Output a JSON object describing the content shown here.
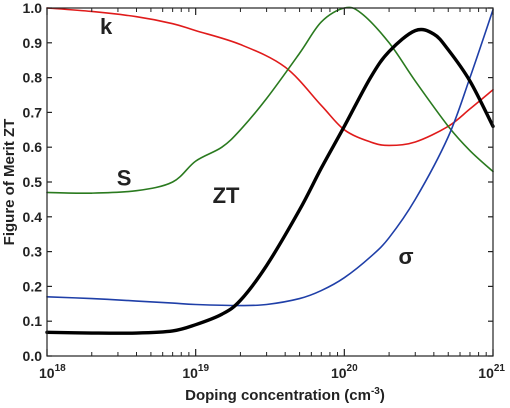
{
  "chart_data": {
    "type": "line",
    "title": "",
    "xlabel": "Doping concentration (cm",
    "xlabel_sup": "-3",
    "xlabel_close": ")",
    "ylabel": "Figure of Merit ZT",
    "xscale": "log",
    "xlim": [
      1e+18,
      1e+21
    ],
    "ylim": [
      0,
      1
    ],
    "grid": false,
    "x_ticks": [
      {
        "base": "10",
        "exp": "18",
        "value": 1e+18
      },
      {
        "base": "10",
        "exp": "19",
        "value": 1e+19
      },
      {
        "base": "10",
        "exp": "20",
        "value": 1e+20
      },
      {
        "base": "10",
        "exp": "21",
        "value": 1e+21
      }
    ],
    "y_ticks": [
      "0.0",
      "0.1",
      "0.2",
      "0.3",
      "0.4",
      "0.5",
      "0.6",
      "0.7",
      "0.8",
      "0.9",
      "1.0"
    ],
    "series": [
      {
        "name": "k",
        "color": "#e01b1b",
        "x": [
          1e+18,
          2e+18,
          4e+18,
          7e+18,
          1e+19,
          2e+19,
          4e+19,
          7e+19,
          1e+20,
          1.5e+20,
          2e+20,
          3e+20,
          5e+20,
          7e+20,
          1e+21
        ],
        "y": [
          1.0,
          0.99,
          0.975,
          0.955,
          0.935,
          0.895,
          0.83,
          0.72,
          0.65,
          0.615,
          0.605,
          0.615,
          0.66,
          0.71,
          0.765
        ]
      },
      {
        "name": "S",
        "color": "#2a7a1f",
        "x": [
          1e+18,
          2e+18,
          4e+18,
          7e+18,
          1e+19,
          1.5e+19,
          2e+19,
          3e+19,
          5e+19,
          7e+19,
          1e+20,
          1.3e+20,
          2e+20,
          3e+20,
          5e+20,
          7e+20,
          1e+21
        ],
        "y": [
          0.47,
          0.468,
          0.475,
          0.5,
          0.56,
          0.6,
          0.65,
          0.74,
          0.87,
          0.96,
          1.0,
          0.985,
          0.9,
          0.79,
          0.66,
          0.59,
          0.53
        ]
      },
      {
        "name": "σ",
        "color": "#1f3fa8",
        "x": [
          1e+18,
          2e+18,
          4e+18,
          7e+18,
          1e+19,
          2e+19,
          3e+19,
          5e+19,
          7e+19,
          1e+20,
          1.5e+20,
          2e+20,
          3e+20,
          5e+20,
          7e+20,
          1e+21
        ],
        "y": [
          0.17,
          0.165,
          0.158,
          0.152,
          0.148,
          0.145,
          0.148,
          0.165,
          0.188,
          0.225,
          0.285,
          0.34,
          0.45,
          0.63,
          0.8,
          0.995
        ]
      },
      {
        "name": "ZT",
        "color": "#000000",
        "x": [
          1e+18,
          2e+18,
          4e+18,
          7e+18,
          1e+19,
          1.5e+19,
          2e+19,
          3e+19,
          5e+19,
          7e+19,
          1e+20,
          1.5e+20,
          2e+20,
          3e+20,
          4e+20,
          5e+20,
          7e+20,
          1e+21
        ],
        "y": [
          0.068,
          0.066,
          0.066,
          0.072,
          0.09,
          0.12,
          0.16,
          0.26,
          0.42,
          0.54,
          0.66,
          0.8,
          0.875,
          0.935,
          0.925,
          0.88,
          0.79,
          0.66
        ]
      }
    ],
    "annotations": [
      {
        "text": "k",
        "x": 2.5e+18,
        "y": 0.925
      },
      {
        "text": "S",
        "x": 3.3e+18,
        "y": 0.49
      },
      {
        "text": "ZT",
        "x": 1.6e+19,
        "y": 0.44
      },
      {
        "text": "σ",
        "x": 2.6e+20,
        "y": 0.265
      }
    ]
  }
}
